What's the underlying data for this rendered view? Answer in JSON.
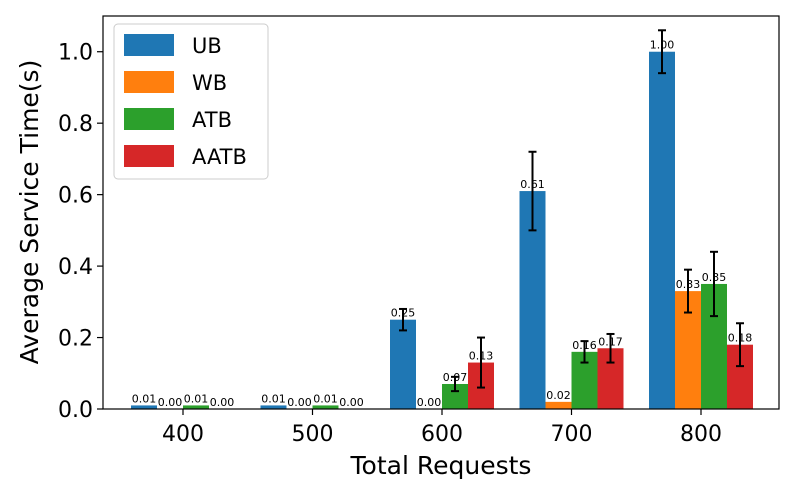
{
  "chart_data": {
    "type": "bar",
    "xlabel": "Total Requests",
    "ylabel": "Average Service Time(s)",
    "categories": [
      "400",
      "500",
      "600",
      "700",
      "800"
    ],
    "ylim": [
      0,
      1.1
    ],
    "yticks": [
      "0.0",
      "0.2",
      "0.4",
      "0.6",
      "0.8",
      "1.0"
    ],
    "legend_position": "top-left",
    "grid": false,
    "series": [
      {
        "name": "UB",
        "color": "#1f77b4",
        "values": [
          0.01,
          0.01,
          0.25,
          0.61,
          1.0
        ],
        "errors": [
          0.0,
          0.0,
          0.03,
          0.11,
          0.06
        ],
        "labels": [
          "0.01",
          "0.01",
          "0.25",
          "0.61",
          "1.00"
        ]
      },
      {
        "name": "WB",
        "color": "#ff7f0e",
        "values": [
          0.0,
          0.0,
          0.0,
          0.02,
          0.33
        ],
        "errors": [
          0.0,
          0.0,
          0.0,
          0.0,
          0.06
        ],
        "labels": [
          "0.00",
          "0.00",
          "0.00",
          "0.02",
          "0.33"
        ]
      },
      {
        "name": "ATB",
        "color": "#2ca02c",
        "values": [
          0.01,
          0.01,
          0.07,
          0.16,
          0.35
        ],
        "errors": [
          0.0,
          0.0,
          0.02,
          0.03,
          0.09
        ],
        "labels": [
          "0.01",
          "0.01",
          "0.07",
          "0.16",
          "0.35"
        ]
      },
      {
        "name": "AATB",
        "color": "#d62728",
        "values": [
          0.0,
          0.0,
          0.13,
          0.17,
          0.18
        ],
        "errors": [
          0.0,
          0.0,
          0.07,
          0.04,
          0.06
        ],
        "labels": [
          "0.00",
          "0.00",
          "0.13",
          "0.17",
          "0.18"
        ]
      }
    ]
  }
}
